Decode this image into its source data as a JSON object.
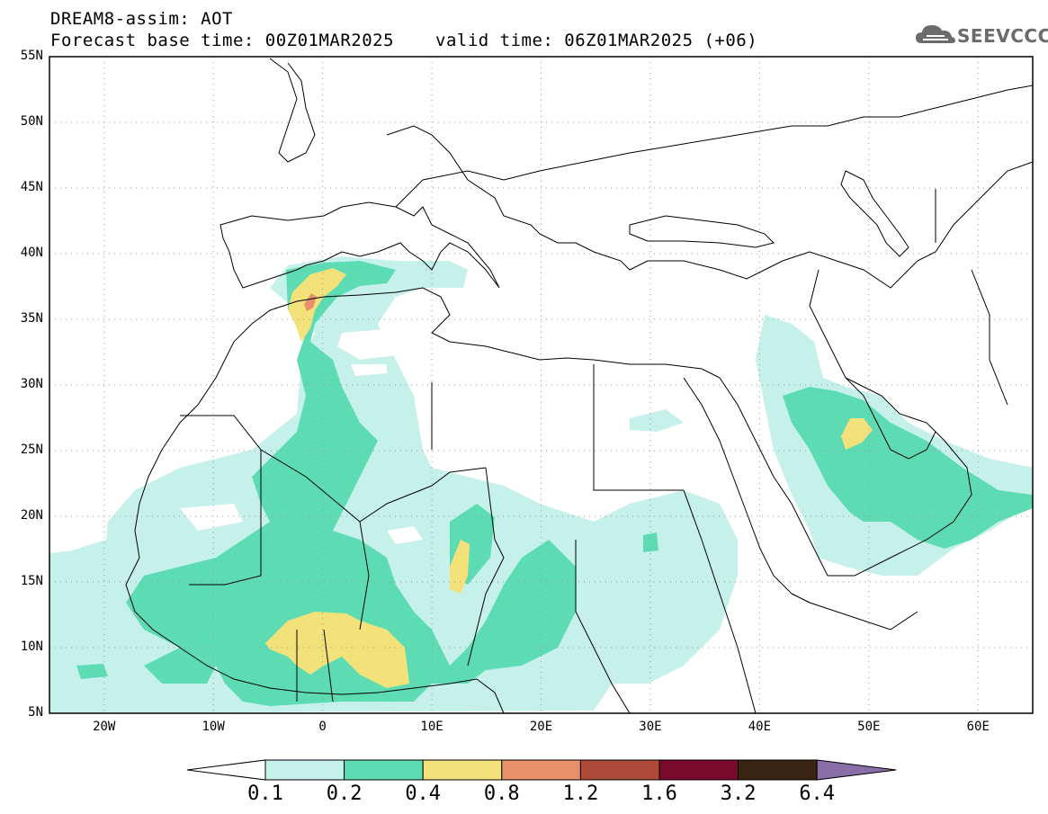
{
  "header": {
    "line1": "DREAM8-assim: AOT",
    "line2": "Forecast base time: 00Z01MAR2025",
    "line3": "valid time: 06Z01MAR2025 (+06)",
    "logo_text": "SEEVCCC",
    "logo_icon": "cloud-icon"
  },
  "map": {
    "lat_labels": [
      "55N",
      "50N",
      "45N",
      "40N",
      "35N",
      "30N",
      "25N",
      "20N",
      "15N",
      "10N",
      "5N"
    ],
    "lon_labels": [
      "20W",
      "10W",
      "0",
      "10E",
      "20E",
      "30E",
      "40E",
      "50E",
      "60E"
    ],
    "lat_range": [
      5,
      55
    ],
    "lon_range": [
      -25,
      65
    ],
    "grid": true
  },
  "colorbar": {
    "labels": [
      "0.1",
      "0.2",
      "0.4",
      "0.8",
      "1.2",
      "1.6",
      "3.2",
      "6.4"
    ],
    "colors": [
      "#c6f1ea",
      "#5ddcb4",
      "#f3e27a",
      "#e8906a",
      "#ad4a3a",
      "#7a0a2c",
      "#3a2414",
      "#8a6ea8"
    ]
  }
}
